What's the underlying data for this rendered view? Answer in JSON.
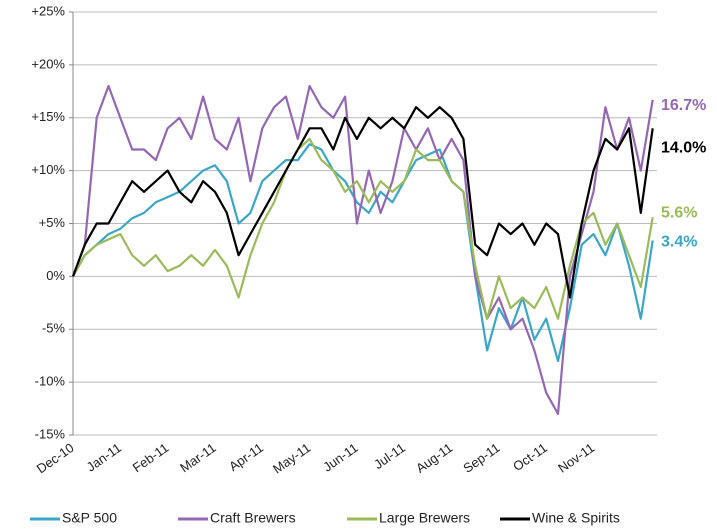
{
  "chart_data": {
    "type": "line",
    "categories": [
      "Dec-10",
      null,
      null,
      null,
      "Jan-11",
      null,
      null,
      null,
      "Feb-11",
      null,
      null,
      null,
      "Mar-11",
      null,
      null,
      null,
      "Apr-11",
      null,
      null,
      null,
      "May-11",
      null,
      null,
      null,
      "Jun-11",
      null,
      null,
      null,
      "Jul-11",
      null,
      null,
      null,
      "Aug-11",
      null,
      null,
      null,
      "Sep-11",
      null,
      null,
      null,
      "Oct-11",
      null,
      null,
      null,
      "Nov-11",
      null,
      null,
      null,
      null,
      null
    ],
    "ylim": [
      -15,
      25
    ],
    "yticks": [
      {
        "value": -15,
        "label": "-15%"
      },
      {
        "value": -10,
        "label": "-10%"
      },
      {
        "value": -5,
        "label": "-5%"
      },
      {
        "value": 0,
        "label": "0%"
      },
      {
        "value": 5,
        "label": "+5%"
      },
      {
        "value": 10,
        "label": "+10%"
      },
      {
        "value": 15,
        "label": "+15%"
      },
      {
        "value": 20,
        "label": "+20%"
      },
      {
        "value": 25,
        "label": "+25%"
      }
    ],
    "grid": true,
    "legend": "bottom",
    "series": [
      {
        "name": "S&P 500",
        "color": "#3aa6c8",
        "last_label": "3.4%",
        "values": [
          0,
          2,
          3,
          4,
          4.5,
          5.5,
          6,
          7,
          7.5,
          8,
          9,
          10,
          10.5,
          9,
          5,
          6,
          9,
          10,
          11,
          11,
          12.5,
          12,
          10,
          9,
          7,
          6,
          8,
          7,
          9,
          11,
          11.5,
          12,
          9,
          8,
          0,
          -7,
          -3,
          -5,
          -2,
          -6,
          -4,
          -8,
          -3,
          3,
          4,
          2,
          5,
          1,
          -4,
          3.4
        ]
      },
      {
        "name": "Craft Brewers",
        "color": "#9467b5",
        "last_label": "16.7%",
        "values": [
          0,
          3,
          15,
          18,
          15,
          12,
          12,
          11,
          14,
          15,
          13,
          17,
          13,
          12,
          15,
          9,
          14,
          16,
          17,
          13,
          18,
          16,
          15,
          17,
          5,
          10,
          6,
          9,
          14,
          12,
          14,
          11,
          13,
          11,
          0,
          -4,
          -2,
          -5,
          -4,
          -7,
          -11,
          -13,
          0,
          4,
          8,
          16,
          12,
          15,
          10,
          16.7
        ]
      },
      {
        "name": "Large Brewers",
        "color": "#9bbb59",
        "last_label": "5.6%",
        "values": [
          0,
          2,
          3,
          3.5,
          4,
          2,
          1,
          2,
          0.5,
          1,
          2,
          1,
          2.5,
          1,
          -2,
          2,
          5,
          7,
          10,
          12,
          13,
          11,
          10,
          8,
          9,
          7,
          9,
          8,
          9,
          12,
          11,
          11,
          9,
          8,
          1,
          -4,
          0,
          -3,
          -2,
          -3,
          -1,
          -4,
          1,
          5,
          6,
          3,
          5,
          2,
          -1,
          5.6
        ]
      },
      {
        "name": "Wine & Spirits",
        "color": "#000000",
        "last_label": "14.0%",
        "values": [
          0,
          3,
          5,
          5,
          7,
          9,
          8,
          9,
          10,
          8,
          7,
          9,
          8,
          6,
          2,
          4,
          6,
          8,
          10,
          12,
          14,
          14,
          12,
          15,
          13,
          15,
          14,
          15,
          14,
          16,
          15,
          16,
          15,
          13,
          3,
          2,
          5,
          4,
          5,
          3,
          5,
          4,
          -2,
          5,
          10,
          13,
          12,
          14,
          6,
          14.0
        ]
      }
    ]
  }
}
